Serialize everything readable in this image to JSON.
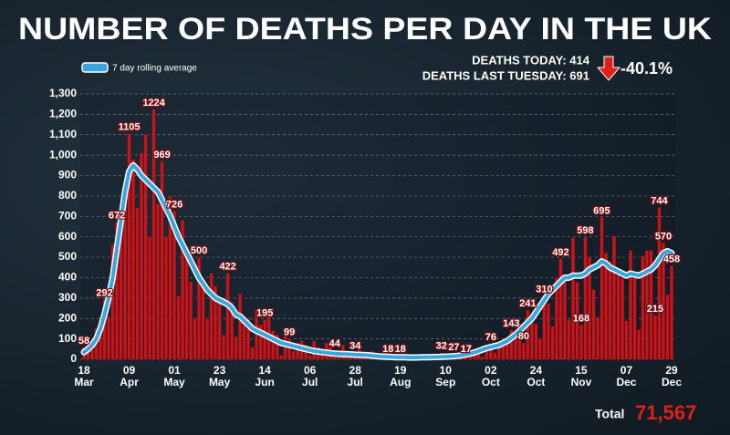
{
  "chart_data": {
    "type": "bar",
    "title": "NUMBER OF DEATHS PER DAY IN THE UK",
    "stats": {
      "deaths_today": "DEATHS TODAY: 414",
      "deaths_last_tuesday": "DEATHS LAST TUESDAY: 691",
      "change": "-40.1%"
    },
    "total_label": "Total",
    "total": "71,567",
    "x": [
      "18 Mar",
      "20 Mar",
      "22 Mar",
      "24 Mar",
      "26 Mar",
      "28 Mar",
      "30 Mar",
      "01 Apr",
      "03 Apr",
      "05 Apr",
      "07 Apr",
      "09 Apr",
      "11 Apr",
      "13 Apr",
      "15 Apr",
      "17 Apr",
      "19 Apr",
      "21 Apr",
      "23 Apr",
      "25 Apr",
      "27 Apr",
      "29 Apr",
      "01 May",
      "03 May",
      "05 May",
      "07 May",
      "09 May",
      "11 May",
      "13 May",
      "15 May",
      "17 May",
      "19 May",
      "21 May",
      "23 May",
      "25 May",
      "27 May",
      "29 May",
      "31 May",
      "02 Jun",
      "04 Jun",
      "06 Jun",
      "08 Jun",
      "10 Jun",
      "12 Jun",
      "14 Jun",
      "16 Jun",
      "18 Jun",
      "20 Jun",
      "22 Jun",
      "24 Jun",
      "26 Jun",
      "28 Jun",
      "30 Jun",
      "02 Jul",
      "04 Jul",
      "06 Jul",
      "08 Jul",
      "10 Jul",
      "12 Jul",
      "14 Jul",
      "16 Jul",
      "18 Jul",
      "20 Jul",
      "22 Jul",
      "24 Jul",
      "26 Jul",
      "28 Jul",
      "30 Jul",
      "01 Aug",
      "03 Aug",
      "05 Aug",
      "07 Aug",
      "09 Aug",
      "11 Aug",
      "13 Aug",
      "15 Aug",
      "17 Aug",
      "19 Aug",
      "21 Aug",
      "23 Aug",
      "25 Aug",
      "27 Aug",
      "29 Aug",
      "31 Aug",
      "02 Sep",
      "04 Sep",
      "06 Sep",
      "08 Sep",
      "10 Sep",
      "12 Sep",
      "14 Sep",
      "16 Sep",
      "18 Sep",
      "20 Sep",
      "22 Sep",
      "24 Sep",
      "26 Sep",
      "28 Sep",
      "30 Sep",
      "02 Oct",
      "04 Oct",
      "06 Oct",
      "08 Oct",
      "10 Oct",
      "12 Oct",
      "14 Oct",
      "16 Oct",
      "18 Oct",
      "20 Oct",
      "22 Oct",
      "24 Oct",
      "26 Oct",
      "28 Oct",
      "30 Oct",
      "01 Nov",
      "03 Nov",
      "05 Nov",
      "07 Nov",
      "09 Nov",
      "11 Nov",
      "13 Nov",
      "15 Nov",
      "17 Nov",
      "19 Nov",
      "21 Nov",
      "23 Nov",
      "25 Nov",
      "27 Nov",
      "29 Nov",
      "01 Dec",
      "03 Dec",
      "05 Dec",
      "07 Dec",
      "09 Dec",
      "11 Dec",
      "13 Dec",
      "15 Dec",
      "17 Dec",
      "19 Dec",
      "21 Dec",
      "23 Dec",
      "25 Dec",
      "27 Dec",
      "29 Dec"
    ],
    "series": [
      {
        "type": "bar",
        "color": "#c4161c",
        "values": [
          58,
          40,
          50,
          150,
          180,
          292,
          210,
          560,
          672,
          700,
          780,
          1105,
          980,
          740,
          1010,
          1100,
          600,
          1224,
          760,
          969,
          600,
          800,
          726,
          310,
          680,
          550,
          380,
          200,
          500,
          390,
          200,
          420,
          360,
          280,
          120,
          422,
          280,
          110,
          320,
          180,
          200,
          60,
          240,
          170,
          195,
          230,
          140,
          120,
          20,
          150,
          99,
          40,
          80,
          90,
          70,
          20,
          90,
          60,
          30,
          80,
          60,
          44,
          15,
          70,
          40,
          20,
          34,
          50,
          30,
          10,
          40,
          20,
          15,
          30,
          18,
          10,
          20,
          18,
          12,
          5,
          16,
          12,
          8,
          3,
          10,
          12,
          4,
          32,
          14,
          9,
          27,
          20,
          27,
          17,
          37,
          40,
          34,
          13,
          71,
          76,
          33,
          76,
          77,
          81,
          143,
          137,
          150,
          80,
          241,
          189,
          174,
          102,
          310,
          274,
          162,
          397,
          492,
          413,
          194,
          595,
          376,
          168,
          598,
          501,
          341,
          206,
          695,
          521,
          479,
          603,
          414,
          397,
          189,
          533,
          424,
          144,
          506,
          532,
          534,
          215,
          744,
          570,
          316,
          458
        ]
      },
      {
        "type": "line",
        "name": "7 day rolling average",
        "color": "#3aa6dd",
        "values": [
          35,
          50,
          70,
          100,
          150,
          220,
          300,
          400,
          540,
          680,
          820,
          920,
          950,
          930,
          900,
          880,
          860,
          840,
          820,
          780,
          740,
          700,
          650,
          600,
          560,
          520,
          480,
          440,
          400,
          370,
          340,
          320,
          300,
          290,
          280,
          270,
          250,
          220,
          210,
          190,
          170,
          150,
          140,
          130,
          120,
          110,
          100,
          90,
          80,
          75,
          70,
          65,
          60,
          55,
          50,
          45,
          40,
          38,
          35,
          33,
          30,
          28,
          27,
          26,
          25,
          24,
          23,
          22,
          21,
          20,
          18,
          16,
          14,
          13,
          12,
          11,
          10,
          10,
          10,
          9,
          9,
          9,
          10,
          10,
          10,
          11,
          11,
          12,
          13,
          14,
          15,
          17,
          20,
          24,
          28,
          33,
          40,
          48,
          55,
          60,
          65,
          70,
          80,
          90,
          105,
          120,
          140,
          160,
          180,
          200,
          230,
          260,
          290,
          320,
          340,
          360,
          380,
          400,
          400,
          410,
          410,
          410,
          420,
          440,
          450,
          460,
          480,
          470,
          450,
          440,
          430,
          420,
          410,
          420,
          415,
          410,
          420,
          430,
          440,
          460,
          490,
          520,
          530,
          520
        ]
      }
    ],
    "annotations": [
      {
        "x": "18 Mar",
        "value": 58
      },
      {
        "x": "28 Mar",
        "value": 292
      },
      {
        "x": "03 Apr",
        "value": 672
      },
      {
        "x": "09 Apr",
        "value": 1105
      },
      {
        "x": "21 Apr",
        "value": 1224
      },
      {
        "x": "25 Apr",
        "value": 969
      },
      {
        "x": "01 May",
        "value": 726
      },
      {
        "x": "13 May",
        "value": 500
      },
      {
        "x": "27 May",
        "value": 422
      },
      {
        "x": "14 Jun",
        "value": 195
      },
      {
        "x": "26 Jun",
        "value": 99
      },
      {
        "x": "18 Jul",
        "value": 44
      },
      {
        "x": "28 Jul",
        "value": 34
      },
      {
        "x": "13 Aug",
        "value": 18
      },
      {
        "x": "19 Aug",
        "value": 18
      },
      {
        "x": "08 Sep",
        "value": 32
      },
      {
        "x": "14 Sep",
        "value": 27
      },
      {
        "x": "20 Sep",
        "value": 17
      },
      {
        "x": "02 Oct",
        "value": 76
      },
      {
        "x": "12 Oct",
        "value": 143
      },
      {
        "x": "18 Oct",
        "value": 80
      },
      {
        "x": "20 Oct",
        "value": 241
      },
      {
        "x": "28 Oct",
        "value": 310
      },
      {
        "x": "05 Nov",
        "value": 492
      },
      {
        "x": "15 Nov",
        "value": 168
      },
      {
        "x": "17 Nov",
        "value": 598
      },
      {
        "x": "25 Nov",
        "value": 695
      },
      {
        "x": "21 Dec",
        "value": 215
      },
      {
        "x": "23 Dec",
        "value": 744
      },
      {
        "x": "25 Dec",
        "value": 570
      },
      {
        "x": "29 Dec",
        "value": 458
      }
    ],
    "ylim": [
      0,
      1300
    ],
    "yticks": [
      0,
      100,
      200,
      300,
      400,
      500,
      600,
      700,
      800,
      900,
      {
        "value": 1000,
        "label": "1,000"
      },
      {
        "value": 1100,
        "label": "1,100"
      },
      {
        "value": 1200,
        "label": "1,200"
      },
      {
        "value": 1300,
        "label": "1,300"
      }
    ],
    "xticks": [
      "18 Mar",
      "09 Apr",
      "01 May",
      "23 May",
      "14 Jun",
      "06 Jul",
      "28 Jul",
      "19 Aug",
      "10 Sep",
      "02 Oct",
      "24 Oct",
      "15 Nov",
      "07 Dec",
      "29 Dec"
    ],
    "grid": true
  }
}
